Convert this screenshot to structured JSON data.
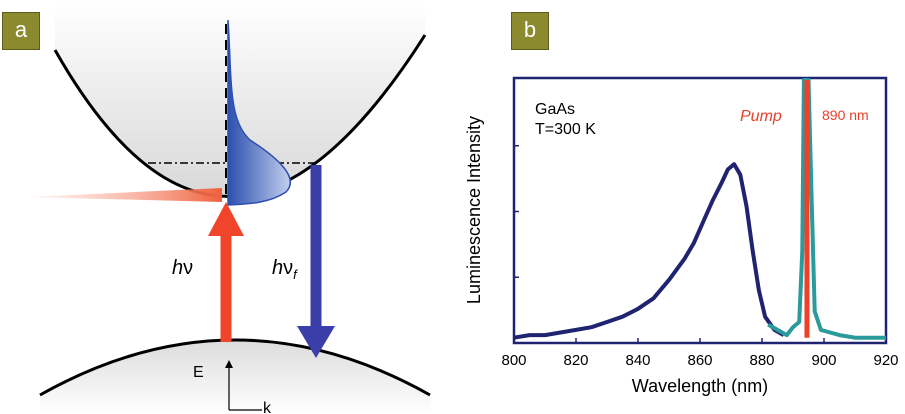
{
  "panel_a": {
    "label": "a",
    "excitation_label_main": "h",
    "excitation_label_nu": "ν",
    "emission_label_main": "h",
    "emission_label_nu": "ν",
    "emission_label_sub": "f",
    "energy_axis_label": "E",
    "momentum_axis_label": "k",
    "colors": {
      "pump_arrow": "#f0452a",
      "emission_arrow": "#3a3ea8",
      "distribution": "#5b7fd0"
    }
  },
  "panel_b": {
    "label": "b",
    "annotation_material": "GaAs",
    "annotation_temperature": "T=300 K",
    "pump_label": "Pump",
    "pump_wavelength_label": "890 nm",
    "colors": {
      "spectrum": "#1f2370",
      "scattered": "#2a9a9a",
      "pump_line": "#f0402a",
      "frame": "#1f2370"
    }
  },
  "chart_data": {
    "type": "line",
    "xlabel": "Wavelength (nm)",
    "ylabel": "Luminescence Intensity",
    "xlim": [
      800,
      920
    ],
    "ylim": [
      0,
      1
    ],
    "x_ticks": [
      "800",
      "820",
      "840",
      "860",
      "880",
      "900",
      "920"
    ],
    "grid": false,
    "series": [
      {
        "x": [
          800,
          805,
          810,
          815,
          820,
          825,
          830,
          835,
          840,
          845,
          850,
          855,
          858,
          861,
          864,
          867,
          869,
          871,
          873,
          875,
          877,
          879,
          881,
          884,
          887
        ],
        "y": [
          0.02,
          0.03,
          0.03,
          0.04,
          0.05,
          0.06,
          0.08,
          0.1,
          0.13,
          0.17,
          0.24,
          0.32,
          0.38,
          0.46,
          0.54,
          0.61,
          0.66,
          0.68,
          0.64,
          0.52,
          0.35,
          0.2,
          0.1,
          0.05,
          0.03
        ]
      },
      {
        "x": [
          882,
          885,
          888,
          890,
          892,
          893,
          893.5,
          894,
          895,
          896,
          897,
          899,
          902,
          905,
          910,
          915,
          920
        ],
        "y": [
          0.07,
          0.05,
          0.03,
          0.06,
          0.08,
          0.35,
          1.0,
          1.0,
          1.0,
          0.55,
          0.12,
          0.05,
          0.04,
          0.03,
          0.02,
          0.02,
          0.02
        ]
      }
    ],
    "pump_wavelength": 894.5
  }
}
